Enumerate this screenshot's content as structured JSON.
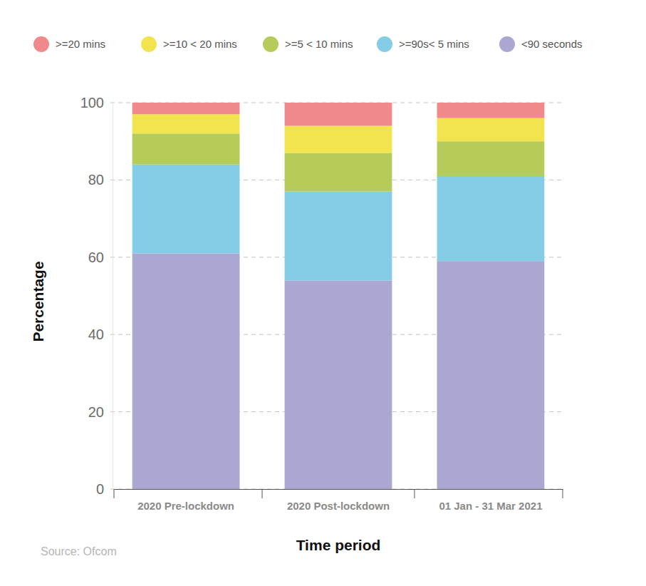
{
  "chart_data": {
    "type": "bar",
    "stacked": true,
    "x_label": "Time period",
    "y_label": "Percentage",
    "source": "Source: Ofcom",
    "categories": [
      "2020 Pre-lockdown",
      "2020 Post-lockdown",
      "01 Jan - 31 Mar 2021"
    ],
    "series": [
      {
        "name": "<90 seconds",
        "color": "#aaa7d1",
        "values": [
          61,
          54,
          59
        ]
      },
      {
        "name": ">=90s< 5 mins",
        "color": "#85cde6",
        "values": [
          23,
          23,
          22
        ]
      },
      {
        "name": ">=5 < 10 mins",
        "color": "#b5cc5a",
        "values": [
          8,
          10,
          9
        ]
      },
      {
        "name": ">=10 < 20 mins",
        "color": "#f2e44f",
        "values": [
          5,
          7,
          6
        ]
      },
      {
        "name": ">=20 mins",
        "color": "#f08a8a",
        "values": [
          3,
          6,
          4
        ]
      }
    ],
    "ylim": [
      0,
      100
    ],
    "yticks": [
      0,
      20,
      40,
      60,
      80,
      100
    ],
    "grid": true,
    "legend": "top"
  }
}
